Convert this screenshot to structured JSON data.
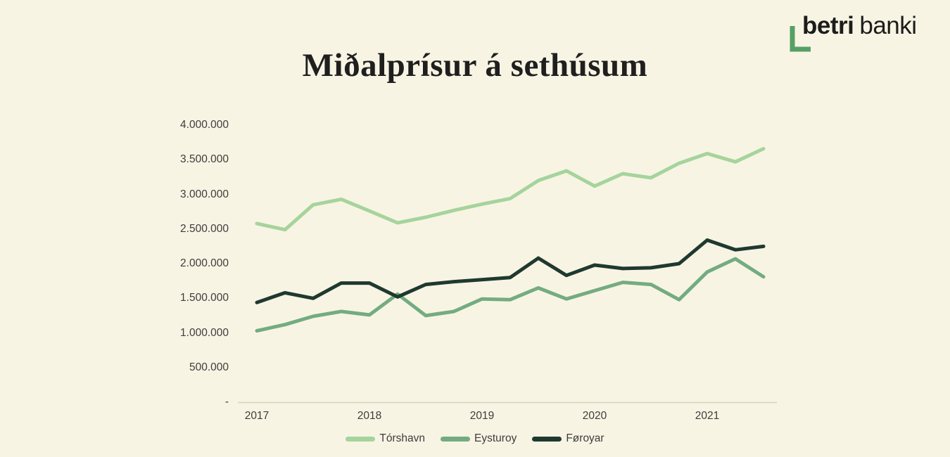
{
  "brand": {
    "name_bold": "betri",
    "name_light": "banki",
    "logo_green": "#54a065",
    "text_color": "#1c1c1c"
  },
  "colors": {
    "background": "#f8f4e3",
    "title": "#1f1f1f",
    "axis_label": "#3d3d3d",
    "axis_line": "#d6d2c2"
  },
  "chart_data": {
    "type": "line",
    "title": "Miðalprísur á sethúsum",
    "frequency": "quarterly",
    "x_tick_labels": [
      "2017",
      "2018",
      "2019",
      "2020",
      "2021"
    ],
    "y_tick_labels": [
      "-",
      "500.000",
      "1.000.000",
      "1.500.000",
      "2.000.000",
      "2.500.000",
      "3.000.000",
      "3.500.000",
      "4.000.000"
    ],
    "y_tick_step": 500000,
    "ylim": [
      0,
      4000000
    ],
    "grid": false,
    "legend_position": "bottom",
    "series": [
      {
        "name": "Tórshavn",
        "color": "#a5d49c",
        "values": [
          2580000,
          2490000,
          2850000,
          2930000,
          2760000,
          2590000,
          2670000,
          2770000,
          2860000,
          2940000,
          3200000,
          3340000,
          3120000,
          3300000,
          3240000,
          3450000,
          3590000,
          3470000,
          3660000
        ]
      },
      {
        "name": "Eysturoy",
        "color": "#73ac80",
        "values": [
          1030000,
          1120000,
          1240000,
          1310000,
          1260000,
          1560000,
          1250000,
          1310000,
          1490000,
          1480000,
          1650000,
          1490000,
          1610000,
          1730000,
          1700000,
          1480000,
          1880000,
          2070000,
          1810000
        ]
      },
      {
        "name": "Føroyar",
        "color": "#1f3930",
        "values": [
          1440000,
          1580000,
          1500000,
          1720000,
          1720000,
          1520000,
          1700000,
          1740000,
          1770000,
          1800000,
          2080000,
          1830000,
          1980000,
          1930000,
          1940000,
          2000000,
          2340000,
          2200000,
          2250000
        ]
      }
    ]
  }
}
